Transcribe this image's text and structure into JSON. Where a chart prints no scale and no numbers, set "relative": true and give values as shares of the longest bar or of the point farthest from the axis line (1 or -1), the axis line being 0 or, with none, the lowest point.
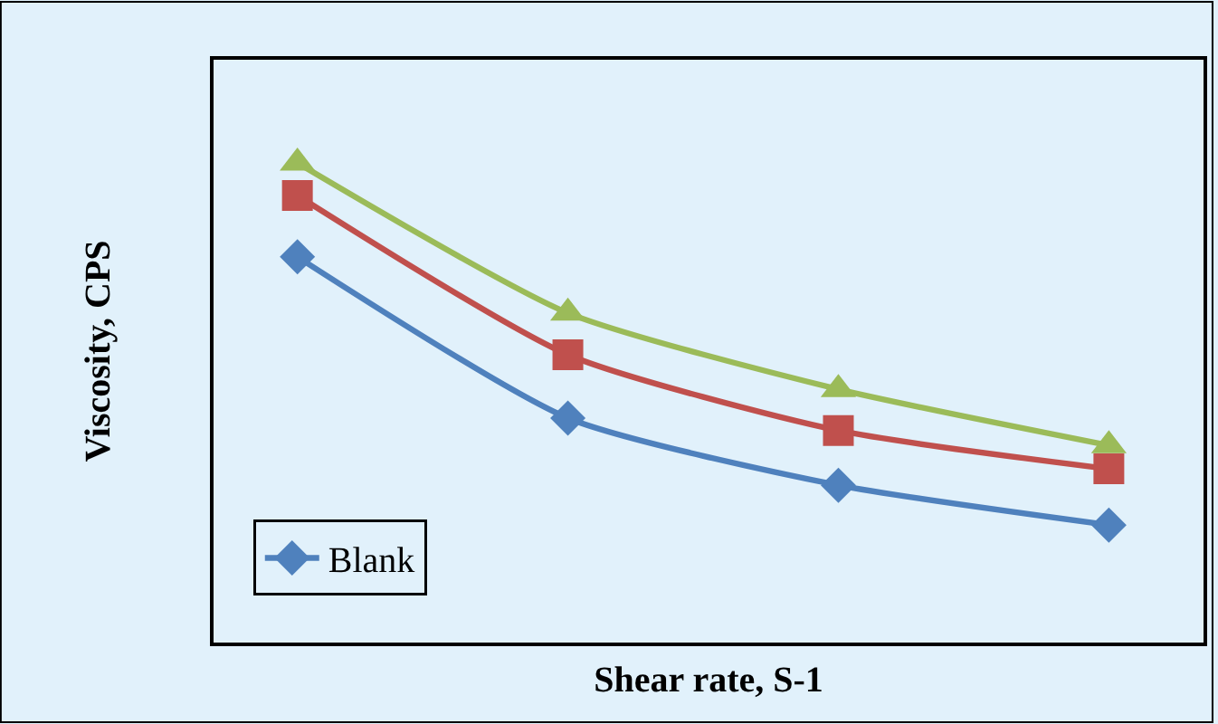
{
  "chart_data": {
    "type": "line",
    "xlabel": "Shear rate, S-1",
    "ylabel": "Viscosity, CPS",
    "relative": true,
    "categories": [
      null,
      null,
      null,
      null
    ],
    "series": [
      {
        "name": "Blank",
        "color": "#4f81bd",
        "marker": "diamond",
        "values": [
          0.804,
          0.468,
          0.328,
          0.245
        ]
      },
      {
        "color": "#c0504d",
        "marker": "square",
        "values": [
          0.932,
          0.6,
          0.442,
          0.362
        ]
      },
      {
        "color": "#9bbb59",
        "marker": "triangle",
        "values": [
          1,
          0.687,
          0.528,
          0.411
        ]
      }
    ],
    "grid": false,
    "legend": "bottom left",
    "tick_labels": false
  }
}
